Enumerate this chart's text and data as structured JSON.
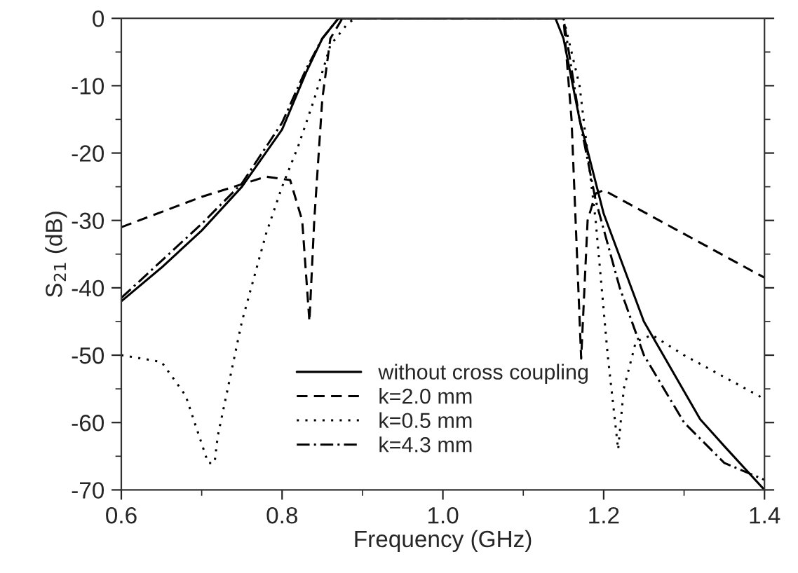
{
  "chart_data": {
    "type": "line",
    "xlabel": "Frequency (GHz)",
    "ylabel": "S$_{21}$ (dB)",
    "xlim": [
      0.6,
      1.4
    ],
    "ylim": [
      -70,
      0
    ],
    "xticks": [
      {
        "value": 0.6,
        "label": "0.6"
      },
      {
        "value": 0.8,
        "label": "0.8"
      },
      {
        "value": 1.0,
        "label": "1.0"
      },
      {
        "value": 1.2,
        "label": "1.2"
      },
      {
        "value": 1.4,
        "label": "1.4"
      }
    ],
    "yticks": [
      -70,
      -60,
      -50,
      -40,
      -30,
      -20,
      -10,
      0
    ],
    "grid": false,
    "legend": "bottom",
    "marker": "none",
    "series": [
      {
        "name": "without cross coupling",
        "color": "#000000",
        "line_style": "solid",
        "x": [
          0.6,
          0.65,
          0.7,
          0.75,
          0.8,
          0.83,
          0.85,
          0.87,
          1.0,
          1.14,
          1.15,
          1.17,
          1.2,
          1.25,
          1.32,
          1.35,
          1.4
        ],
        "values": [
          -42,
          -37,
          -31.5,
          -25,
          -16.5,
          -8,
          -3,
          0,
          0,
          0,
          -3,
          -15,
          -29,
          -45,
          -59.5,
          -63.5,
          -70
        ]
      },
      {
        "name": "k=2.0 mm",
        "color": "#000000",
        "line_style": "dashed",
        "x": [
          0.6,
          0.7,
          0.78,
          0.81,
          0.825,
          0.834,
          0.84,
          0.85,
          0.86,
          0.875,
          1.0,
          1.15,
          1.16,
          1.172,
          1.18,
          1.19,
          1.2,
          1.3,
          1.4
        ],
        "values": [
          -31,
          -26.5,
          -23.5,
          -24,
          -30,
          -45,
          -30,
          -12,
          -3,
          0,
          0,
          0,
          -15,
          -50.5,
          -30,
          -26,
          -25.5,
          -32,
          -38.5
        ]
      },
      {
        "name": "k=0.5 mm",
        "color": "#000000",
        "line_style": "dotted",
        "x": [
          0.6,
          0.65,
          0.68,
          0.708,
          0.716,
          0.72,
          0.75,
          0.78,
          0.8,
          0.82,
          0.84,
          0.86,
          0.88,
          0.89,
          1.0,
          1.15,
          1.17,
          1.19,
          1.205,
          1.218,
          1.225,
          1.24,
          1.26,
          1.3,
          1.4
        ],
        "values": [
          -50,
          -51,
          -56,
          -66,
          -66,
          -62,
          -45,
          -32,
          -25,
          -19,
          -12,
          -4,
          -1,
          0,
          0,
          0,
          -10,
          -30,
          -50,
          -64,
          -55,
          -48,
          -47,
          -50,
          -56.5
        ]
      },
      {
        "name": "k=4.3 mm",
        "color": "#000000",
        "line_style": "dashdot",
        "x": [
          0.6,
          0.7,
          0.75,
          0.8,
          0.83,
          0.85,
          0.87,
          1.0,
          1.15,
          1.17,
          1.19,
          1.22,
          1.25,
          1.3,
          1.35,
          1.4
        ],
        "values": [
          -41.5,
          -30.5,
          -24.5,
          -15.5,
          -7.5,
          -3,
          0,
          0,
          0,
          -15,
          -27,
          -40,
          -50,
          -60,
          -66,
          -68.5
        ]
      }
    ]
  }
}
